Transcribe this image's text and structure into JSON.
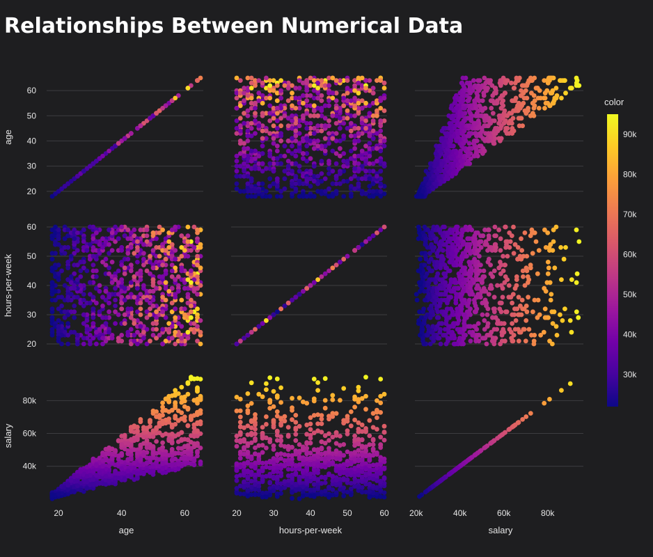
{
  "title": "Relationships Between Numerical Data",
  "chart_data": {
    "type": "scatter",
    "subtype": "scatter-matrix",
    "title": "Relationships Between Numerical Data",
    "dimensions": [
      "age",
      "hours-per-week",
      "salary"
    ],
    "ranges": {
      "age": [
        18,
        65
      ],
      "hours-per-week": [
        20,
        60
      ],
      "salary": [
        22000,
        95000
      ]
    },
    "axis_ticks": {
      "age": [
        20,
        30,
        40,
        50,
        60
      ],
      "age_x": [
        20,
        40,
        60
      ],
      "hours-per-week": [
        20,
        30,
        40,
        50,
        60
      ],
      "salary": [
        20000,
        40000,
        60000,
        80000
      ]
    },
    "tick_labels": {
      "age": [
        "20",
        "30",
        "40",
        "50",
        "60"
      ],
      "age_x": [
        "20",
        "40",
        "60"
      ],
      "hours-per-week": [
        "20",
        "30",
        "40",
        "50",
        "60"
      ],
      "salary": [
        "20k",
        "40k",
        "60k",
        "80k"
      ]
    },
    "color_variable": "salary",
    "colorscale": "plasma",
    "colorbar": {
      "title": "color",
      "range": [
        22000,
        95000
      ],
      "ticks": [
        30000,
        40000,
        50000,
        60000,
        70000,
        80000,
        90000
      ],
      "tick_labels": [
        "30k",
        "40k",
        "50k",
        "60k",
        "70k",
        "80k",
        "90k"
      ]
    },
    "relationship": "salary ≈ 20000 + k × (age − 18) + noise; hours-per-week uniform 20–60",
    "grid": true,
    "legend": "right"
  }
}
